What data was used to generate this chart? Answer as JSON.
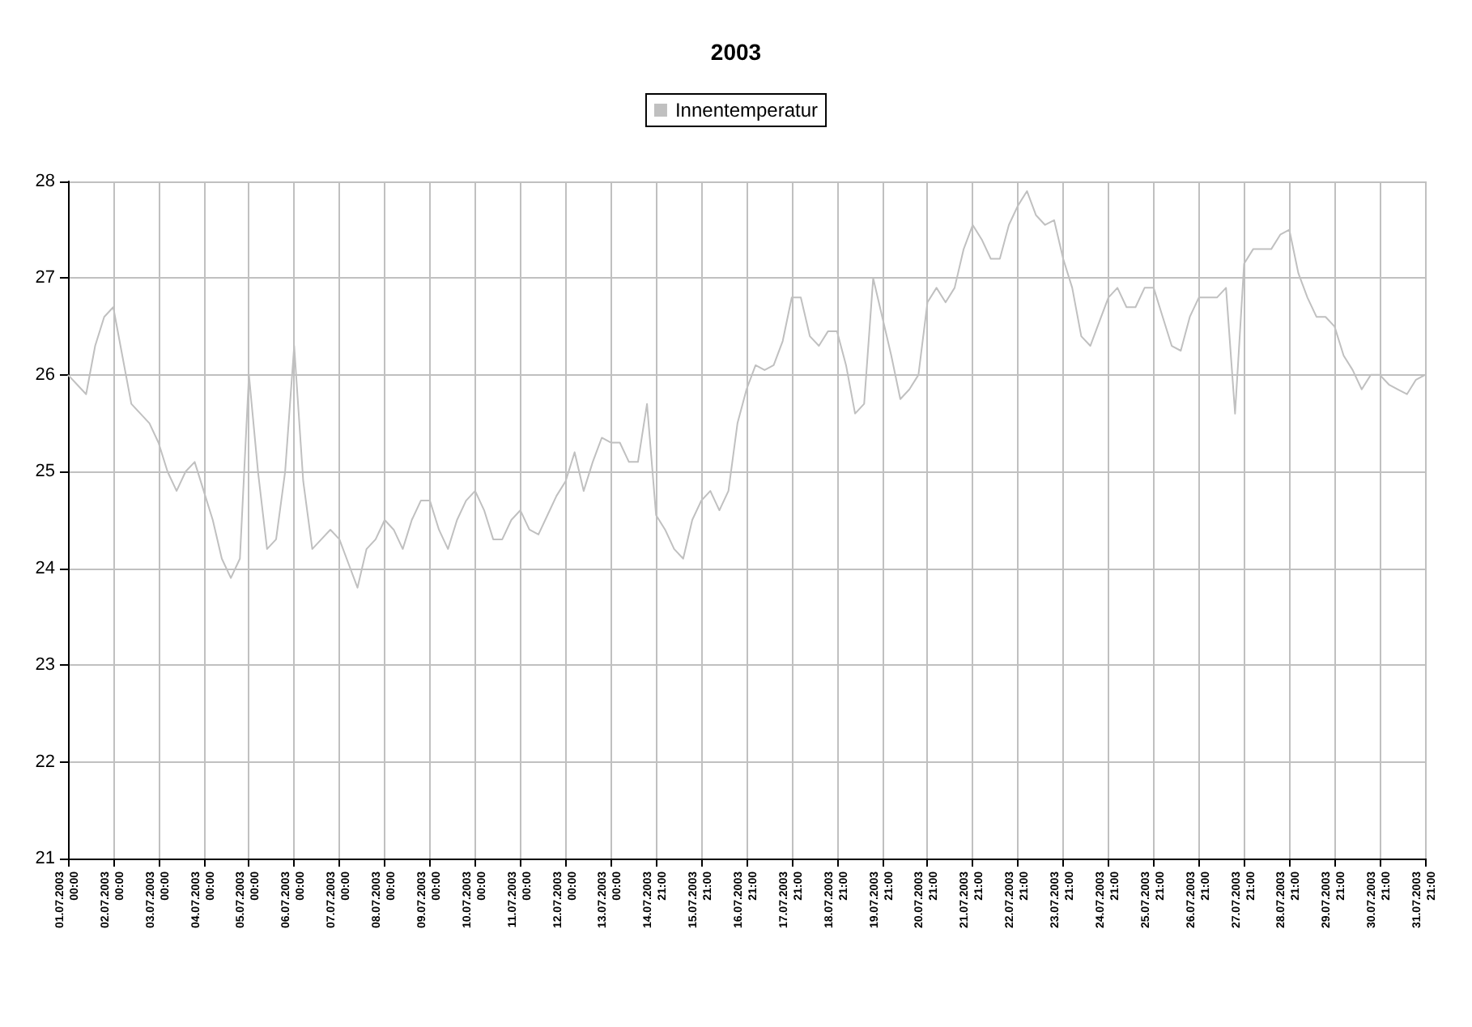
{
  "chart_data": {
    "type": "line",
    "title": "2003",
    "categories": [
      "01.07.2003 00:00",
      null,
      null,
      null,
      null,
      "02.07.2003 00:00",
      null,
      null,
      null,
      null,
      "03.07.2003 00:00",
      null,
      null,
      null,
      null,
      "04.07.2003 00:00",
      null,
      null,
      null,
      null,
      "05.07.2003 00:00",
      null,
      null,
      null,
      null,
      "06.07.2003 00:00",
      null,
      null,
      null,
      null,
      "07.07.2003 00:00",
      null,
      null,
      null,
      null,
      "08.07.2003 00:00",
      null,
      null,
      null,
      null,
      "09.07.2003 00:00",
      null,
      null,
      null,
      null,
      "10.07.2003 00:00",
      null,
      null,
      null,
      null,
      "11.07.2003 00:00",
      null,
      null,
      null,
      null,
      "12.07.2003 00:00",
      null,
      null,
      null,
      null,
      "13.07.2003 00:00",
      null,
      null,
      null,
      null,
      "14.07.2003 21:00",
      null,
      null,
      null,
      null,
      "15.07.2003 21:00",
      null,
      null,
      null,
      null,
      "16.07.2003 21:00",
      null,
      null,
      null,
      null,
      "17.07.2003 21:00",
      null,
      null,
      null,
      null,
      "18.07.2003 21:00",
      null,
      null,
      null,
      null,
      "19.07.2003 21:00",
      null,
      null,
      null,
      null,
      "20.07.2003 21:00",
      null,
      null,
      null,
      null,
      "21.07.2003 21:00",
      null,
      null,
      null,
      null,
      "22.07.2003 21:00",
      null,
      null,
      null,
      null,
      "23.07.2003 21:00",
      null,
      null,
      null,
      null,
      "24.07.2003 21:00",
      null,
      null,
      null,
      null,
      "25.07.2003 21:00",
      null,
      null,
      null,
      null,
      "26.07.2003 21:00",
      null,
      null,
      null,
      null,
      "27.07.2003 21:00",
      null,
      null,
      null,
      null,
      "28.07.2003 21:00",
      null,
      null,
      null,
      null,
      "29.07.2003 21:00",
      null,
      null,
      null,
      null,
      "30.07.2003 21:00",
      null,
      null,
      null,
      null,
      "31.07.2003 21:00"
    ],
    "series": [
      {
        "name": "Innentemperatur",
        "color": "#c0c0c0",
        "values": [
          26.0,
          25.9,
          25.8,
          26.3,
          26.6,
          26.7,
          26.2,
          25.7,
          25.6,
          25.5,
          25.3,
          25.0,
          24.8,
          25.0,
          25.1,
          24.8,
          24.5,
          24.1,
          23.9,
          24.1,
          26.0,
          25.0,
          24.2,
          24.3,
          25.0,
          26.3,
          24.9,
          24.2,
          24.3,
          24.4,
          24.3,
          24.05,
          23.8,
          24.2,
          24.3,
          24.5,
          24.4,
          24.2,
          24.5,
          24.7,
          24.7,
          24.4,
          24.2,
          24.5,
          24.7,
          24.8,
          24.6,
          24.3,
          24.3,
          24.5,
          24.6,
          24.4,
          24.35,
          24.55,
          24.75,
          24.9,
          25.2,
          24.8,
          25.1,
          25.35,
          25.3,
          25.3,
          25.1,
          25.1,
          25.7,
          24.55,
          24.4,
          24.2,
          24.1,
          24.5,
          24.7,
          24.8,
          24.6,
          24.8,
          25.5,
          25.85,
          26.1,
          26.05,
          26.1,
          26.35,
          26.8,
          26.8,
          26.4,
          26.3,
          26.45,
          26.45,
          26.1,
          25.6,
          25.7,
          27.0,
          26.6,
          26.2,
          25.75,
          25.85,
          26.0,
          26.75,
          26.9,
          26.75,
          26.9,
          27.3,
          27.55,
          27.4,
          27.2,
          27.2,
          27.55,
          27.75,
          27.9,
          27.65,
          27.55,
          27.6,
          27.2,
          26.9,
          26.4,
          26.3,
          26.55,
          26.8,
          26.9,
          26.7,
          26.7,
          26.9,
          26.9,
          26.6,
          26.3,
          26.25,
          26.6,
          26.8,
          26.8,
          26.8,
          26.9,
          25.6,
          27.15,
          27.3,
          27.3,
          27.3,
          27.45,
          27.5,
          27.05,
          26.8,
          26.6,
          26.6,
          26.5,
          26.2,
          26.05,
          25.85,
          26.0,
          26.0,
          25.9,
          25.85,
          25.8,
          25.95,
          26.0
        ]
      }
    ],
    "ylim": [
      21,
      28
    ],
    "yticks": [
      21,
      22,
      23,
      24,
      25,
      26,
      27,
      28
    ],
    "grid": true,
    "legend": "top",
    "marker": "none",
    "line_style": "solid"
  }
}
